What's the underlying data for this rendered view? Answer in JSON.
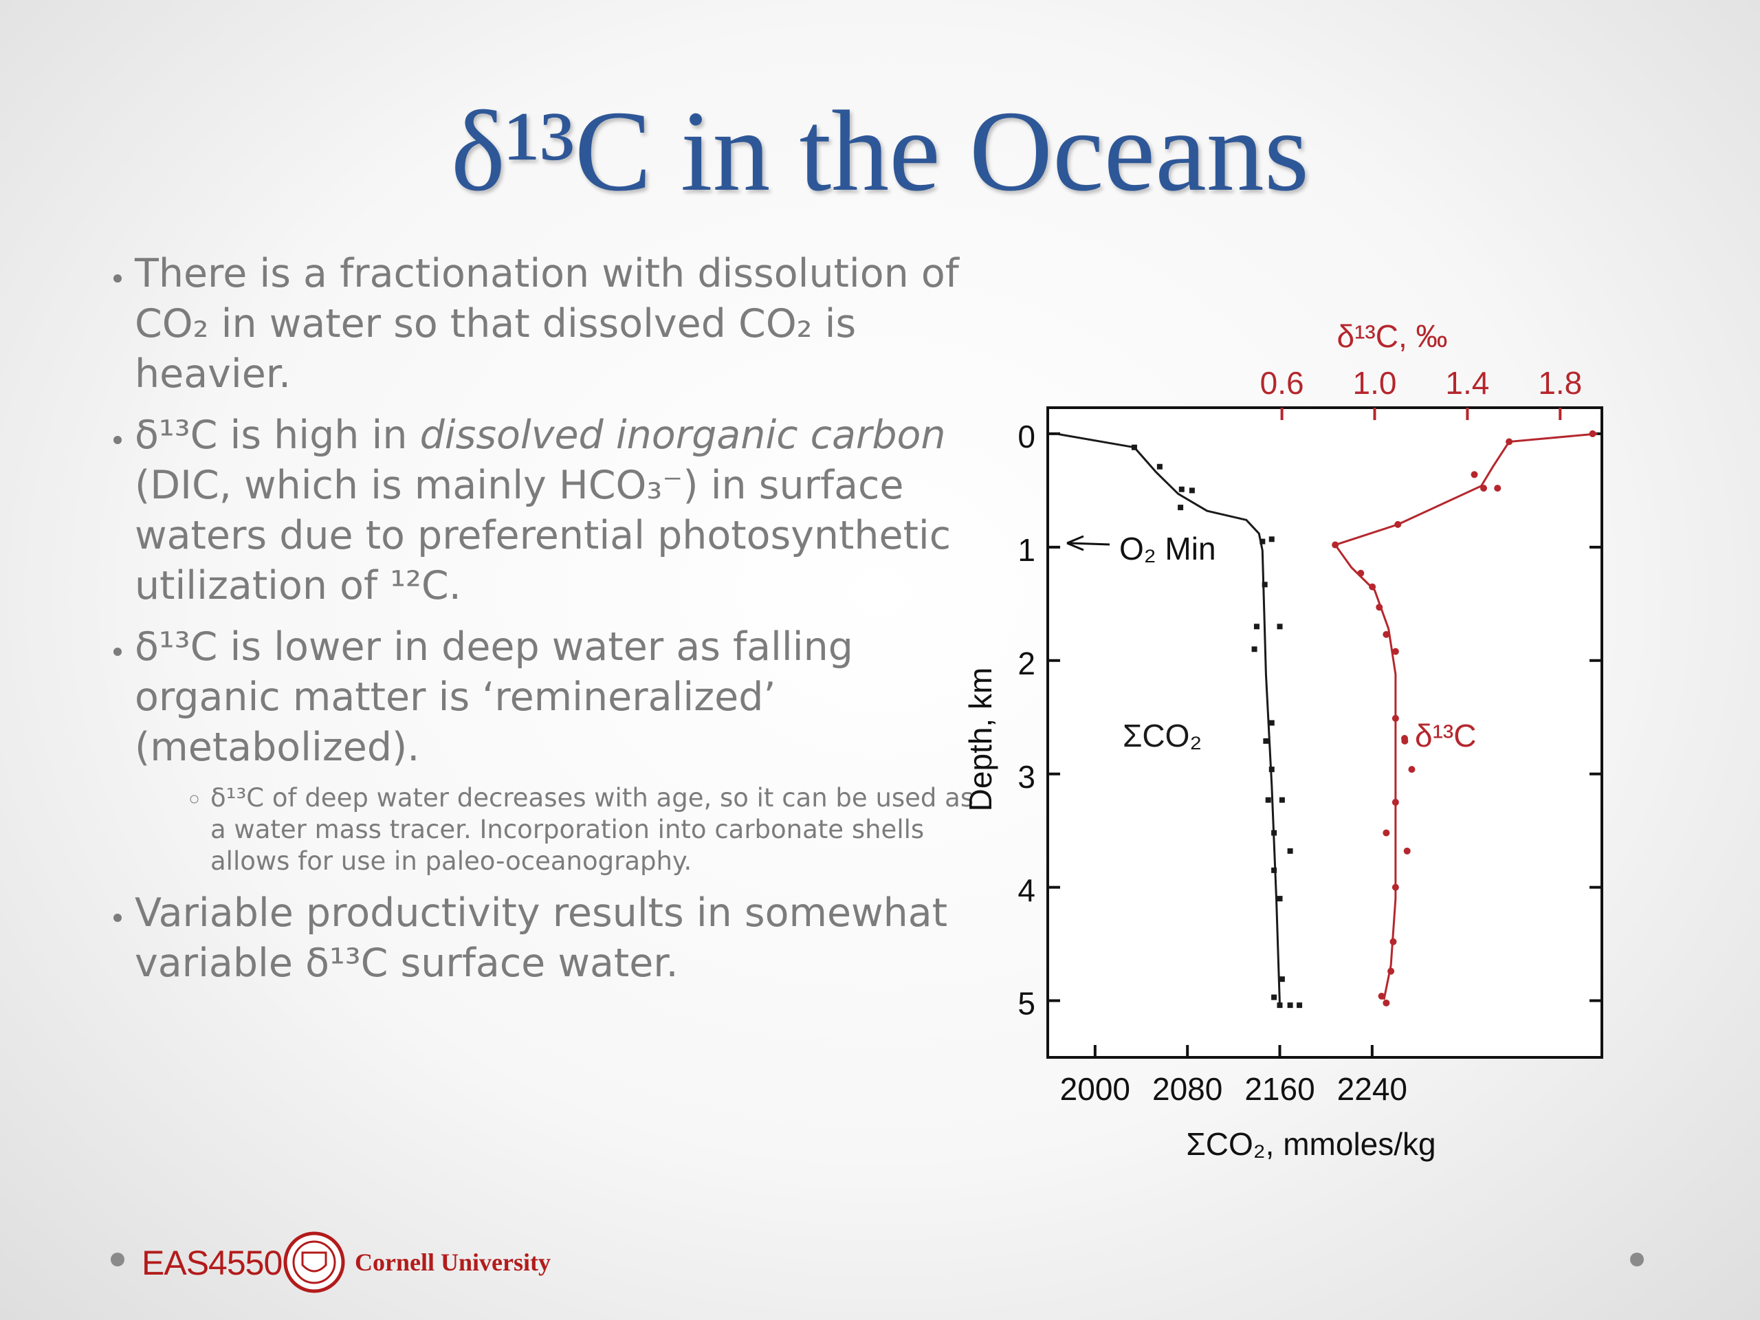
{
  "slide": {
    "title": "δ¹³C in the Oceans",
    "bullets": [
      {
        "parts": [
          {
            "text": "There is a fractionation with dissolution of CO₂ in water so that dissolved CO₂ is heavier."
          }
        ]
      },
      {
        "parts": [
          {
            "text": "δ¹³C is high in "
          },
          {
            "text": "dissolved inorganic carbon",
            "italic": true
          },
          {
            "text": " (DIC, which is mainly HCO₃⁻) in surface waters due to preferential photosynthetic utilization of ¹²C."
          }
        ]
      },
      {
        "parts": [
          {
            "text": "δ¹³C is lower in deep water as falling organic matter is ‘remineralized’ (metabolized)."
          }
        ],
        "sub": [
          {
            "text": "δ¹³C of deep water decreases with age, so it can be used as a water mass tracer. Incorporation into carbonate shells allows for use in paleo-oceanography."
          }
        ]
      },
      {
        "parts": [
          {
            "text": "Variable productivity results in somewhat variable δ¹³C surface water."
          }
        ]
      }
    ],
    "footer": {
      "course": "EAS4550",
      "university": "Cornell University"
    }
  },
  "chart_data": {
    "type": "line",
    "xlabel": "ΣCO₂, mmoles/kg",
    "x2label": "δ¹³C, ‰",
    "ylabel": "Depth, km",
    "xlim": [
      1959,
      2439
    ],
    "xticks": [
      2000,
      2080,
      2160,
      2240
    ],
    "x2lim": [
      -0.41,
      1.98
    ],
    "x2ticks": [
      0.6,
      {
        "value": 1,
        "label": "1.0"
      },
      1.4,
      1.8
    ],
    "ylim": [
      -0.23,
      5.5
    ],
    "yticks": [
      0,
      1,
      2,
      3,
      4,
      5
    ],
    "y_inverted": true,
    "series": [
      {
        "name": "ΣCO₂",
        "color": "#1a1a1a",
        "axis": "x",
        "line": {
          "x": [
            1966,
            2034,
            2053,
            2072,
            2097,
            2131,
            2142,
            2145,
            2148,
            2153,
            2157,
            2160
          ],
          "y": [
            0,
            0.12,
            0.34,
            0.53,
            0.68,
            0.76,
            0.88,
            1.03,
            2.12,
            3.1,
            4.1,
            5.04
          ]
        },
        "points": {
          "x": [
            2034,
            2056,
            2075,
            2084,
            2074,
            2145,
            2153,
            2147,
            2140,
            2160,
            2138,
            2153,
            2148,
            2153,
            2162,
            2150,
            2155,
            2169,
            2155,
            2160,
            2162,
            2155,
            2160,
            2169,
            2177
          ],
          "y": [
            0.12,
            0.29,
            0.49,
            0.5,
            0.65,
            0.95,
            0.93,
            1.33,
            1.7,
            1.7,
            1.9,
            2.55,
            2.71,
            2.96,
            3.23,
            3.23,
            3.52,
            3.68,
            3.85,
            4.1,
            4.81,
            4.97,
            5.04,
            5.04,
            5.04
          ]
        }
      },
      {
        "name": "δ¹³C",
        "color": "#b5272d",
        "axis": "x2",
        "line": {
          "x": [
            1.96,
            1.58,
            1.51,
            1.46,
            1.1,
            0.83,
            0.9,
            1.0,
            1.06,
            1.09,
            1.09,
            1.09,
            1.07,
            1.04
          ],
          "y": [
            0,
            0.07,
            0.29,
            0.46,
            0.8,
            0.98,
            1.18,
            1.38,
            1.72,
            2.12,
            3.11,
            4.1,
            4.69,
            4.99
          ]
        },
        "points": {
          "x": [
            1.94,
            1.58,
            1.43,
            1.47,
            1.53,
            1.1,
            0.83,
            0.94,
            0.99,
            1.02,
            1.05,
            1.09,
            1.09,
            1.13,
            1.16,
            1.09,
            1.05,
            1.14,
            1.09,
            1.08,
            1.07,
            1.03,
            1.05
          ],
          "y": [
            0,
            0.07,
            0.36,
            0.48,
            0.48,
            0.8,
            0.98,
            1.23,
            1.35,
            1.53,
            1.77,
            1.92,
            2.51,
            2.71,
            2.96,
            3.25,
            3.52,
            3.68,
            4.0,
            4.48,
            4.74,
            4.96,
            5.02
          ]
        }
      }
    ],
    "annotations": [
      {
        "text": "O₂ Min"
      }
    ]
  }
}
